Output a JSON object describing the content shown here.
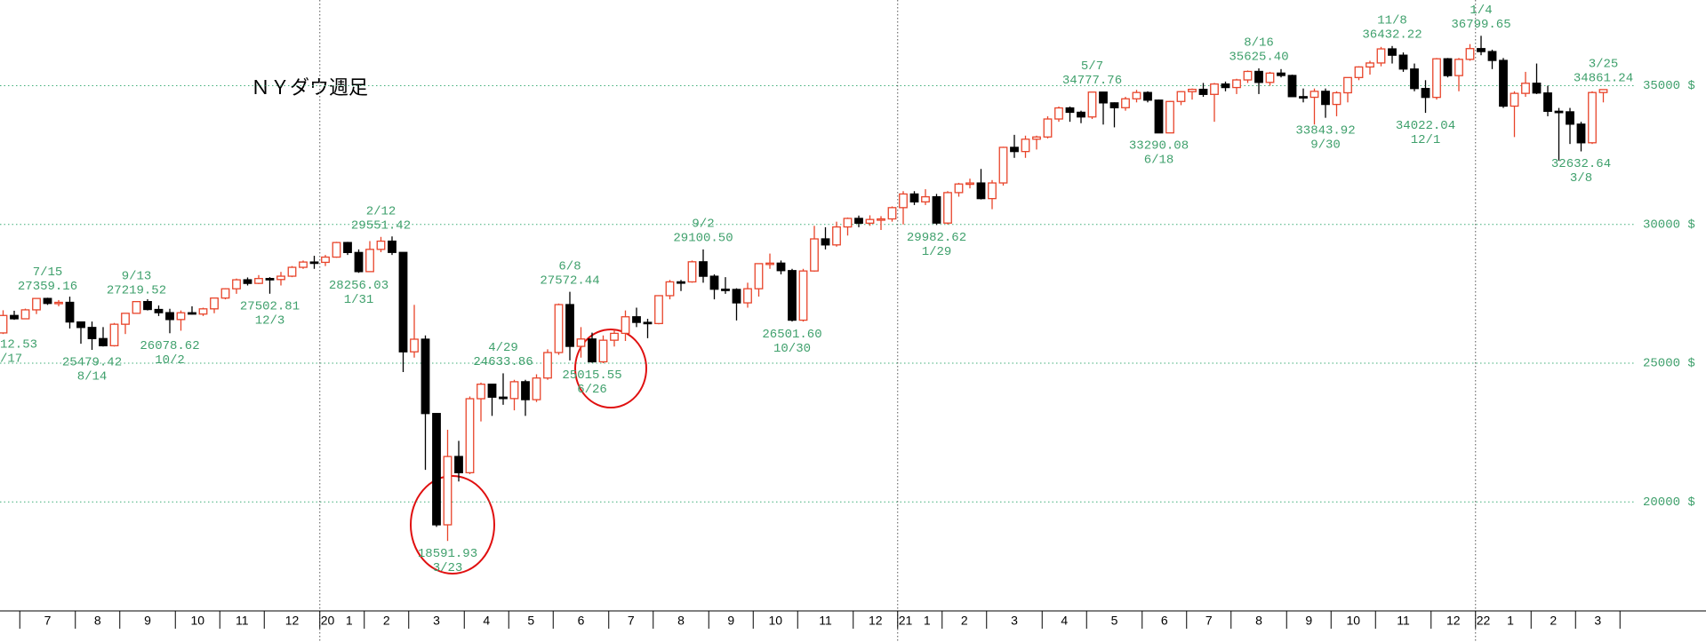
{
  "chart_data": {
    "type": "candlestick",
    "title": "ＮＹダウ週足",
    "ylim": [
      16070,
      38090
    ],
    "yticks": [
      {
        "value": 20000,
        "label": "20000 $"
      },
      {
        "value": 25000,
        "label": "25000 $"
      },
      {
        "value": 30000,
        "label": "30000 $"
      },
      {
        "value": 35000,
        "label": "35000 $"
      }
    ],
    "grid": true,
    "grid_color": "#3fae78",
    "label_color": "#3fa06c",
    "up_color": "#e8442a",
    "down_color": "#000000",
    "xticks": [
      {
        "value": 2,
        "label": "7"
      },
      {
        "value": 7,
        "label": "8"
      },
      {
        "value": 11,
        "label": "9"
      },
      {
        "value": 16,
        "label": "10"
      },
      {
        "value": 20,
        "label": "11"
      },
      {
        "value": 24,
        "label": "12"
      },
      {
        "value": 29,
        "label": "1"
      },
      {
        "value": 33,
        "label": "2"
      },
      {
        "value": 37,
        "label": "3"
      },
      {
        "value": 42,
        "label": "4"
      },
      {
        "value": 46,
        "label": "5"
      },
      {
        "value": 50,
        "label": "6"
      },
      {
        "value": 55,
        "label": "7"
      },
      {
        "value": 59,
        "label": "8"
      },
      {
        "value": 64,
        "label": "9"
      },
      {
        "value": 68,
        "label": "10"
      },
      {
        "value": 72,
        "label": "11"
      },
      {
        "value": 77,
        "label": "12"
      },
      {
        "value": 81,
        "label": "1"
      },
      {
        "value": 85,
        "label": "2"
      },
      {
        "value": 89,
        "label": "3"
      },
      {
        "value": 94,
        "label": "4"
      },
      {
        "value": 98,
        "label": "5"
      },
      {
        "value": 103,
        "label": "6"
      },
      {
        "value": 107,
        "label": "7"
      },
      {
        "value": 111,
        "label": "8"
      },
      {
        "value": 116,
        "label": "9"
      },
      {
        "value": 120,
        "label": "10"
      },
      {
        "value": 124,
        "label": "11"
      },
      {
        "value": 129,
        "label": "12"
      },
      {
        "value": 133,
        "label": "1"
      },
      {
        "value": 138,
        "label": "2"
      },
      {
        "value": 142,
        "label": "3"
      }
    ],
    "year_markers": [
      {
        "value": 29,
        "label": "20"
      },
      {
        "value": 81,
        "label": "21"
      },
      {
        "value": 133,
        "label": "22"
      }
    ],
    "edge_labels": [
      "12.53",
      "/17"
    ],
    "annotations": [
      {
        "date": "7/15",
        "value": 27359.16
      },
      {
        "date": "8/14",
        "value": 25479.42
      },
      {
        "date": "9/13",
        "value": 27219.52
      },
      {
        "date": "10/2",
        "value": 26078.62
      },
      {
        "date": "12/3",
        "value": 27502.81
      },
      {
        "date": "1/31",
        "value": 28256.03
      },
      {
        "date": "2/12",
        "value": 29551.42
      },
      {
        "date": "3/23",
        "value": 18591.93
      },
      {
        "date": "4/29",
        "value": 24633.86
      },
      {
        "date": "6/8",
        "value": 27572.44
      },
      {
        "date": "6/26",
        "value": 25015.55
      },
      {
        "date": "9/2",
        "value": 29100.5,
        "label": "29100.50"
      },
      {
        "date": "10/30",
        "value": 26501.6,
        "label": "26501.60"
      },
      {
        "date": "1/29",
        "value": 29982.62
      },
      {
        "date": "5/7",
        "value": 34777.76
      },
      {
        "date": "6/18",
        "value": 33290.08
      },
      {
        "date": "8/16",
        "value": 35625.4,
        "label": "35625.40"
      },
      {
        "date": "9/30",
        "value": 33843.92
      },
      {
        "date": "11/8",
        "value": 36432.22
      },
      {
        "date": "12/1",
        "value": 34022.04
      },
      {
        "date": "1/4",
        "value": 36799.65
      },
      {
        "date": "3/8",
        "value": 32632.64
      },
      {
        "date": "3/25",
        "value": 34861.24
      }
    ],
    "candles": [
      [
        26090,
        26907,
        26051,
        26719
      ],
      [
        26719,
        26890,
        26562,
        26600
      ],
      [
        26600,
        26966,
        26600,
        26922
      ],
      [
        26922,
        27332,
        26770,
        27332
      ],
      [
        27332,
        27359.16,
        27100,
        27154
      ],
      [
        27154,
        27275,
        27050,
        27192
      ],
      [
        27192,
        27398,
        26250,
        26485
      ],
      [
        26485,
        26500,
        25700,
        26287
      ],
      [
        26287,
        26500,
        25479.42,
        25886
      ],
      [
        25886,
        26300,
        25600,
        25629
      ],
      [
        25629,
        26450,
        25600,
        26403
      ],
      [
        26403,
        26800,
        26050,
        26797
      ],
      [
        26797,
        27219.52,
        26790,
        27219
      ],
      [
        27219,
        27306,
        26900,
        26935
      ],
      [
        26935,
        27080,
        26700,
        26820
      ],
      [
        26820,
        26960,
        26078.62,
        26573
      ],
      [
        26573,
        26900,
        26170,
        26817
      ],
      [
        26817,
        27050,
        26750,
        26770
      ],
      [
        26770,
        27000,
        26700,
        26958
      ],
      [
        26958,
        27350,
        26800,
        27347
      ],
      [
        27347,
        27700,
        27300,
        27681
      ],
      [
        27681,
        28050,
        27500,
        28005
      ],
      [
        28005,
        28090,
        27800,
        27876
      ],
      [
        27876,
        28175,
        27850,
        28051
      ],
      [
        28051,
        28100,
        27502.81,
        28015
      ],
      [
        28015,
        28290,
        27800,
        28135
      ],
      [
        28135,
        28500,
        28100,
        28455
      ],
      [
        28455,
        28700,
        28400,
        28645
      ],
      [
        28645,
        28870,
        28400,
        28634
      ],
      [
        28634,
        28900,
        28500,
        28823
      ],
      [
        28823,
        29374,
        28800,
        29348
      ],
      [
        29348,
        29373,
        28900,
        28989
      ],
      [
        28989,
        29100,
        28256.03,
        28300
      ],
      [
        28300,
        29400,
        28300,
        29102
      ],
      [
        29102,
        29551.42,
        29000,
        29398
      ],
      [
        29398,
        29568,
        28900,
        28992
      ],
      [
        28992,
        29000,
        24681,
        25409
      ],
      [
        25409,
        27102,
        25200,
        25864
      ],
      [
        25864,
        26000,
        21154,
        23185
      ],
      [
        23185,
        23200,
        19100,
        19174
      ],
      [
        19174,
        22600,
        18591.93,
        21636
      ],
      [
        21636,
        22200,
        20735,
        21052
      ],
      [
        21052,
        23800,
        21000,
        23719
      ],
      [
        23719,
        24300,
        22900,
        24242
      ],
      [
        24242,
        24250,
        23100,
        23775
      ],
      [
        23775,
        24633.86,
        23500,
        23724
      ],
      [
        23724,
        24400,
        23300,
        24331
      ],
      [
        24331,
        24400,
        23100,
        23685
      ],
      [
        23685,
        24600,
        23600,
        24465
      ],
      [
        24465,
        25500,
        24400,
        25383
      ],
      [
        25383,
        27150,
        25300,
        27111
      ],
      [
        27111,
        27572.44,
        25100,
        25606
      ],
      [
        25606,
        26300,
        25200,
        25871
      ],
      [
        25871,
        26100,
        25015.55,
        25050
      ],
      [
        25050,
        26000,
        25000,
        25827
      ],
      [
        25827,
        26200,
        25600,
        26075
      ],
      [
        26075,
        26900,
        25800,
        26672
      ],
      [
        26672,
        27000,
        26300,
        26470
      ],
      [
        26470,
        26600,
        25900,
        26428
      ],
      [
        26428,
        27450,
        26400,
        27433
      ],
      [
        27433,
        28000,
        27300,
        27931
      ],
      [
        27931,
        28000,
        27600,
        27930
      ],
      [
        27930,
        28700,
        27900,
        28654
      ],
      [
        28654,
        29100.5,
        27900,
        28133
      ],
      [
        28133,
        28200,
        27300,
        27666
      ],
      [
        27666,
        28100,
        27500,
        27657
      ],
      [
        27657,
        27700,
        26540,
        27174
      ],
      [
        27174,
        27900,
        27000,
        27683
      ],
      [
        27683,
        28600,
        27400,
        28587
      ],
      [
        28587,
        28950,
        28400,
        28606
      ],
      [
        28606,
        28700,
        28200,
        28336
      ],
      [
        28336,
        28400,
        26501.6,
        26550
      ],
      [
        26550,
        28400,
        26500,
        28323
      ],
      [
        28323,
        29950,
        28300,
        29480
      ],
      [
        29480,
        29900,
        29100,
        29263
      ],
      [
        29263,
        30100,
        29200,
        29910
      ],
      [
        29910,
        30250,
        29600,
        30218
      ],
      [
        30218,
        30320,
        29900,
        30046
      ],
      [
        30046,
        30330,
        29950,
        30179
      ],
      [
        30179,
        30300,
        29800,
        30200
      ],
      [
        30200,
        30650,
        30100,
        30606
      ],
      [
        30606,
        31200,
        30000,
        31098
      ],
      [
        31098,
        31200,
        30700,
        30814
      ],
      [
        30814,
        31270,
        30700,
        30997
      ],
      [
        30997,
        31100,
        29982.62,
        30050
      ],
      [
        30050,
        31200,
        30000,
        31148
      ],
      [
        31148,
        31500,
        31000,
        31458
      ],
      [
        31458,
        31650,
        31300,
        31494
      ],
      [
        31494,
        32000,
        30900,
        30932
      ],
      [
        30932,
        31600,
        30550,
        31496
      ],
      [
        31496,
        32800,
        31400,
        32779
      ],
      [
        32779,
        33230,
        32400,
        32628
      ],
      [
        32628,
        33200,
        32400,
        33073
      ],
      [
        33073,
        33200,
        32700,
        33153
      ],
      [
        33153,
        33900,
        33100,
        33801
      ],
      [
        33801,
        34250,
        33700,
        34200
      ],
      [
        34200,
        34250,
        33700,
        34043
      ],
      [
        34043,
        34100,
        33650,
        33875
      ],
      [
        33875,
        34777.76,
        33800,
        34770
      ],
      [
        34770,
        34780,
        33600,
        34382
      ],
      [
        34382,
        34400,
        33500,
        34208
      ],
      [
        34208,
        34600,
        34100,
        34529
      ],
      [
        34529,
        34850,
        34400,
        34756
      ],
      [
        34756,
        34800,
        34400,
        34480
      ],
      [
        34480,
        34500,
        33290.08,
        33300
      ],
      [
        33300,
        34450,
        33300,
        34433
      ],
      [
        34433,
        34800,
        34300,
        34786
      ],
      [
        34786,
        34900,
        34500,
        34870
      ],
      [
        34870,
        35100,
        34600,
        34688
      ],
      [
        34688,
        35100,
        33700,
        35062
      ],
      [
        35062,
        35150,
        34800,
        34935
      ],
      [
        34935,
        35250,
        34700,
        35209
      ],
      [
        35209,
        35550,
        35100,
        35515
      ],
      [
        35515,
        35625.4,
        34700,
        35120
      ],
      [
        35120,
        35500,
        35000,
        35455
      ],
      [
        35455,
        35600,
        35300,
        35369
      ],
      [
        35369,
        35400,
        34600,
        34607
      ],
      [
        34607,
        34900,
        34400,
        34584
      ],
      [
        34584,
        34900,
        33600,
        34798
      ],
      [
        34798,
        34900,
        33843.92,
        34326
      ],
      [
        34326,
        34800,
        33900,
        34746
      ],
      [
        34746,
        35300,
        34400,
        35295
      ],
      [
        35295,
        35700,
        35200,
        35677
      ],
      [
        35677,
        35900,
        35400,
        35820
      ],
      [
        35820,
        36400,
        35700,
        36328
      ],
      [
        36328,
        36432.22,
        35800,
        36100
      ],
      [
        36100,
        36200,
        35500,
        35602
      ],
      [
        35602,
        35800,
        34800,
        34899
      ],
      [
        34899,
        35200,
        34022.04,
        34580
      ],
      [
        34580,
        36000,
        34500,
        35971
      ],
      [
        35971,
        36000,
        35300,
        35365
      ],
      [
        35365,
        36000,
        34800,
        35951
      ],
      [
        35951,
        36500,
        35900,
        36338
      ],
      [
        36338,
        36799.65,
        36100,
        36231
      ],
      [
        36231,
        36300,
        35600,
        35912
      ],
      [
        35912,
        36000,
        34200,
        34265
      ],
      [
        34265,
        34800,
        33150,
        34725
      ],
      [
        34725,
        35500,
        34600,
        35090
      ],
      [
        35090,
        35800,
        34700,
        34738
      ],
      [
        34738,
        35000,
        33900,
        34079
      ],
      [
        34079,
        34200,
        32300,
        34059
      ],
      [
        34059,
        34200,
        32900,
        33615
      ],
      [
        33615,
        33700,
        32632.64,
        32944
      ],
      [
        32944,
        34800,
        32900,
        34755
      ],
      [
        34755,
        34861.24,
        34400,
        34861
      ]
    ]
  }
}
